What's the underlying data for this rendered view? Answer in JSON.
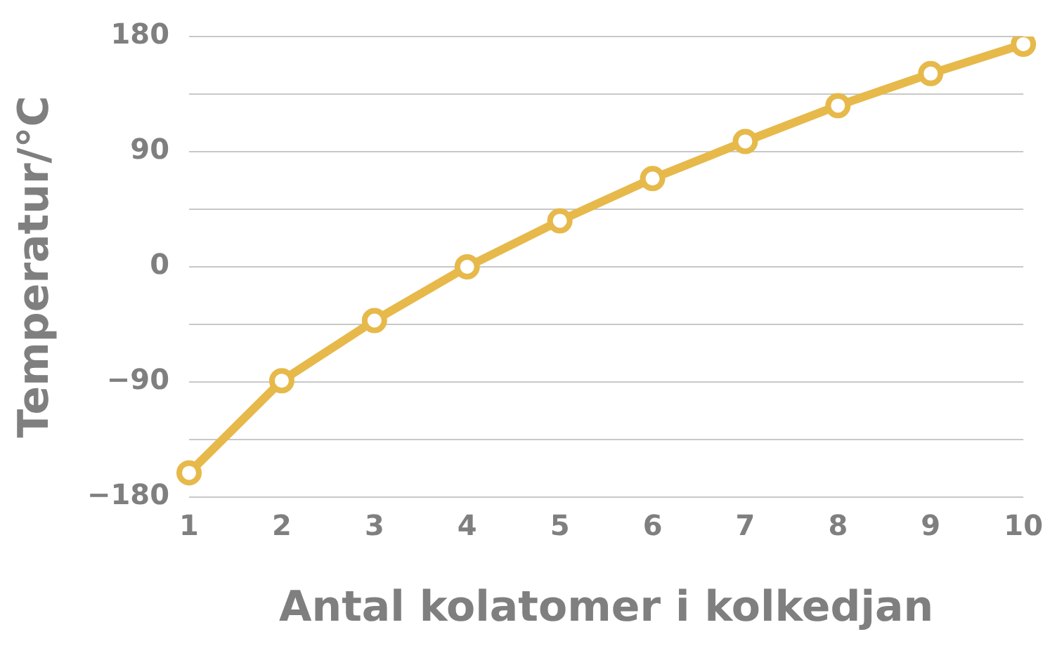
{
  "chart_data": {
    "type": "line",
    "xlabel": "Antal kolatomer i kolkedjan",
    "ylabel": "Temperatur/°C",
    "categories": [
      "1",
      "2",
      "3",
      "4",
      "5",
      "6",
      "7",
      "8",
      "9",
      "10"
    ],
    "series": [
      {
        "color": "#e6b94a",
        "values": [
          -161,
          -89,
          -42,
          0,
          36,
          69,
          98,
          126,
          151,
          174
        ]
      }
    ],
    "ylim": [
      -180,
      180
    ],
    "yticks": [
      {
        "value": -180,
        "label": "−180"
      },
      {
        "value": -135,
        "label": null
      },
      {
        "value": -90,
        "label": "−90"
      },
      {
        "value": -45,
        "label": null
      },
      0,
      {
        "value": 45,
        "label": null
      },
      90,
      {
        "value": 135,
        "label": null
      },
      180
    ],
    "grid": "y",
    "legend": false,
    "marker": "circle",
    "line_style": "solid"
  }
}
